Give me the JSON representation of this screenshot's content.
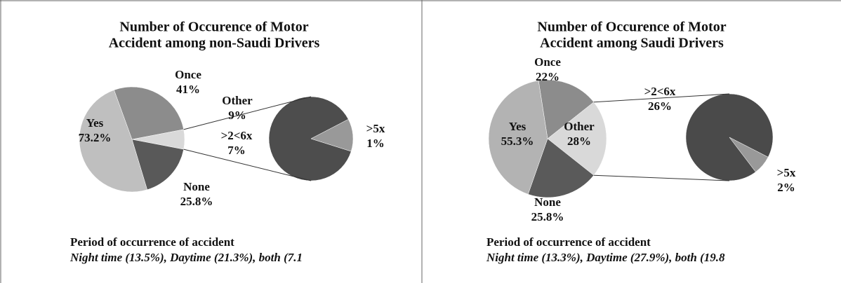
{
  "chart_data": [
    {
      "type": "pie",
      "title": [
        "Number of Occurence of Motor",
        "Accident among non-Saudi Drivers"
      ],
      "categories": [
        "Once",
        "Other",
        "None",
        "Yes"
      ],
      "values": [
        41,
        9,
        25.8,
        73.2
      ],
      "value_labels": [
        "41%",
        "9%",
        "25.8%",
        "73.2%"
      ],
      "colors": [
        "#8c8c8c",
        "#d9d9d9",
        "#595959",
        "#bfbfbf"
      ],
      "secondary": {
        "categories": [
          ">2<6x",
          ">5x"
        ],
        "values": [
          7,
          1
        ],
        "value_labels": [
          "7%",
          "1%"
        ],
        "colors": [
          "#4d4d4d",
          "#999999"
        ]
      },
      "footer": {
        "heading": "Period of occurrence of accident",
        "text": "Night time  (13.5%), Daytime (21.3%), both (7.1"
      }
    },
    {
      "type": "pie",
      "title": [
        "Number of Occurence of Motor",
        "Accident among Saudi Drivers"
      ],
      "categories": [
        "Once",
        "Other",
        "None",
        "Yes"
      ],
      "values": [
        22,
        28,
        25.8,
        55.3
      ],
      "value_labels": [
        "22%",
        "28%",
        "25.8%",
        "55.3%"
      ],
      "colors": [
        "#8c8c8c",
        "#d9d9d9",
        "#5a5a5a",
        "#b3b3b3"
      ],
      "secondary": {
        "categories": [
          ">2<6x",
          ">5x"
        ],
        "values": [
          26,
          2
        ],
        "value_labels": [
          "26%",
          "2%"
        ],
        "colors": [
          "#4a4a4a",
          "#999999"
        ]
      },
      "footer": {
        "heading": "Period of occurrence of accident",
        "text": "Night time  (13.3%), Daytime (27.9%), both (19.8"
      }
    }
  ]
}
